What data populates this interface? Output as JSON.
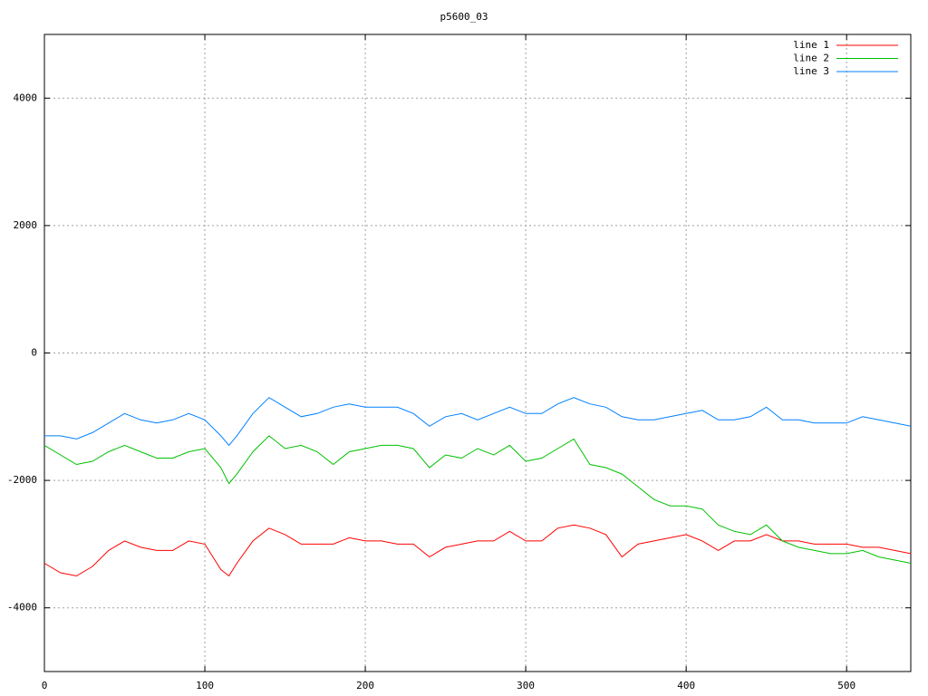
{
  "chart_data": {
    "type": "line",
    "title": "p5600_03",
    "x": [
      0,
      10,
      20,
      30,
      40,
      50,
      60,
      70,
      80,
      90,
      100,
      110,
      115,
      120,
      130,
      140,
      150,
      160,
      170,
      180,
      190,
      200,
      210,
      220,
      230,
      240,
      250,
      260,
      270,
      280,
      290,
      300,
      310,
      320,
      330,
      340,
      350,
      360,
      370,
      380,
      390,
      400,
      410,
      420,
      430,
      440,
      450,
      460,
      470,
      480,
      490,
      500,
      510,
      520,
      530,
      540
    ],
    "series": [
      {
        "name": "line 1",
        "color": "#ff0000",
        "values": [
          -3300,
          -3450,
          -3500,
          -3350,
          -3100,
          -2950,
          -3050,
          -3100,
          -3100,
          -2950,
          -3000,
          -3400,
          -3500,
          -3300,
          -2950,
          -2750,
          -2850,
          -3000,
          -3000,
          -3000,
          -2900,
          -2950,
          -2950,
          -3000,
          -3000,
          -3200,
          -3050,
          -3000,
          -2950,
          -2950,
          -2800,
          -2950,
          -2950,
          -2750,
          -2700,
          -2750,
          -2850,
          -3200,
          -3000,
          -2950,
          -2900,
          -2850,
          -2950,
          -3100,
          -2950,
          -2950,
          -2850,
          -2950,
          -2950,
          -3000,
          -3000,
          -3000,
          -3050,
          -3050,
          -3100,
          -3150
        ]
      },
      {
        "name": "line 2",
        "color": "#00c000",
        "values": [
          -1450,
          -1600,
          -1750,
          -1700,
          -1550,
          -1450,
          -1550,
          -1650,
          -1650,
          -1550,
          -1500,
          -1800,
          -2050,
          -1900,
          -1550,
          -1300,
          -1500,
          -1450,
          -1550,
          -1750,
          -1550,
          -1500,
          -1450,
          -1450,
          -1500,
          -1800,
          -1600,
          -1650,
          -1500,
          -1600,
          -1450,
          -1700,
          -1650,
          -1500,
          -1350,
          -1750,
          -1800,
          -1900,
          -2100,
          -2300,
          -2400,
          -2400,
          -2450,
          -2700,
          -2800,
          -2850,
          -2700,
          -2950,
          -3050,
          -3100,
          -3150,
          -3150,
          -3100,
          -3200,
          -3250,
          -3300
        ]
      },
      {
        "name": "line 3",
        "color": "#0080ff",
        "values": [
          -1300,
          -1300,
          -1350,
          -1250,
          -1100,
          -950,
          -1050,
          -1100,
          -1050,
          -950,
          -1050,
          -1300,
          -1450,
          -1300,
          -950,
          -700,
          -850,
          -1000,
          -950,
          -850,
          -800,
          -850,
          -850,
          -850,
          -950,
          -1150,
          -1000,
          -950,
          -1050,
          -950,
          -850,
          -950,
          -950,
          -800,
          -700,
          -800,
          -850,
          -1000,
          -1050,
          -1050,
          -1000,
          -950,
          -900,
          -1050,
          -1050,
          -1000,
          -850,
          -1050,
          -1050,
          -1100,
          -1100,
          -1100,
          -1000,
          -1050,
          -1100,
          -1150
        ]
      }
    ],
    "xlim": [
      0,
      540
    ],
    "ylim": [
      -5000,
      5000
    ],
    "xticks": [
      0,
      100,
      200,
      300,
      400,
      500
    ],
    "yticks": [
      -4000,
      -2000,
      0,
      2000,
      4000
    ],
    "grid": true,
    "legend": "top-right"
  }
}
